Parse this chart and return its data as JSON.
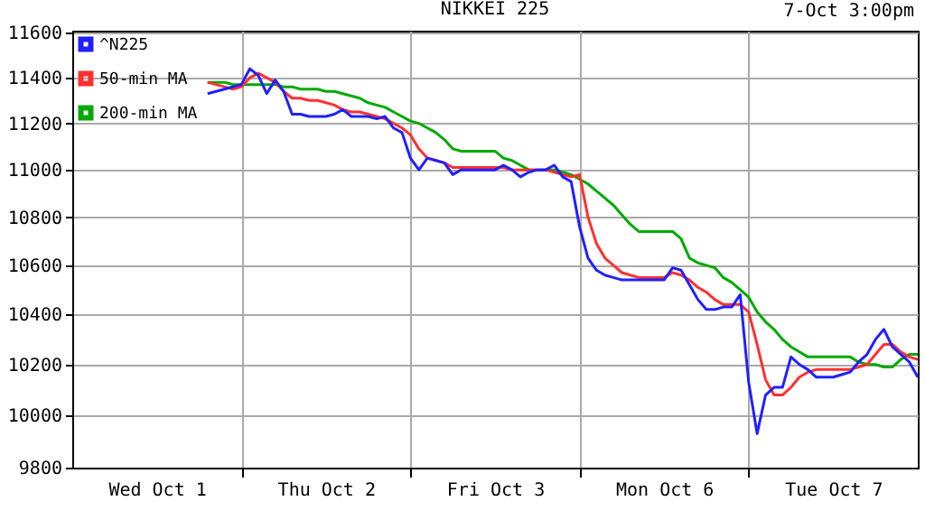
{
  "chart_data": {
    "type": "line",
    "title": "NIKKEI 225",
    "annotations": [
      "7-Oct 3:00pm"
    ],
    "log": "y",
    "grid": true,
    "legend": "top left",
    "line_style": "solid",
    "marker": "none",
    "categories": [
      null,
      null,
      null,
      null,
      null,
      null,
      null,
      null,
      null,
      null,
      "Wed Oct  1",
      null,
      null,
      null,
      null,
      null,
      null,
      null,
      null,
      null,
      null,
      null,
      null,
      null,
      null,
      null,
      null,
      null,
      null,
      null,
      "Thu Oct  2",
      null,
      null,
      null,
      null,
      null,
      null,
      null,
      null,
      null,
      null,
      null,
      null,
      null,
      null,
      null,
      null,
      null,
      null,
      null,
      "Fri Oct  3",
      null,
      null,
      null,
      null,
      null,
      null,
      null,
      null,
      null,
      null,
      null,
      null,
      null,
      null,
      null,
      null,
      null,
      null,
      null,
      "Mon Oct  6",
      null,
      null,
      null,
      null,
      null,
      null,
      null,
      null,
      null,
      null,
      null,
      null,
      null,
      null,
      null,
      null,
      null,
      null,
      null,
      "Tue Oct  7",
      null,
      null,
      null,
      null,
      null,
      null,
      null,
      null,
      null,
      null
    ],
    "ylim": [
      9800,
      11610
    ],
    "yticks": [
      9800,
      10000,
      10200,
      10400,
      10600,
      10800,
      11000,
      11200,
      11400,
      11600
    ],
    "series": [
      {
        "name": "^N225",
        "color": "#2020ff",
        "values": [
          null,
          null,
          null,
          null,
          null,
          null,
          null,
          null,
          null,
          null,
          null,
          null,
          null,
          null,
          null,
          null,
          11330,
          11340,
          11350,
          11360,
          11370,
          11440,
          11410,
          11330,
          11390,
          11340,
          11240,
          11240,
          11230,
          11230,
          11230,
          11240,
          11260,
          11230,
          11230,
          11230,
          11220,
          11230,
          11180,
          11160,
          11050,
          11000,
          11050,
          11040,
          11030,
          10980,
          11000,
          11000,
          11000,
          11000,
          11000,
          11020,
          11000,
          10970,
          10990,
          11000,
          11000,
          11020,
          10970,
          10950,
          10760,
          10630,
          10580,
          10560,
          10550,
          10540,
          10540,
          10540,
          10540,
          10540,
          10540,
          10590,
          10580,
          10520,
          10460,
          10420,
          10420,
          10430,
          10430,
          10480,
          10130,
          9930,
          10080,
          10110,
          10110,
          10230,
          10200,
          10180,
          10150,
          10150,
          10150,
          10160,
          10170,
          10210,
          10240,
          10300,
          10340,
          10270,
          10240,
          10210,
          10150
        ]
      },
      {
        "name": "50-min MA",
        "color": "#ff3030",
        "values": [
          null,
          null,
          null,
          null,
          null,
          null,
          null,
          null,
          null,
          null,
          null,
          null,
          null,
          null,
          null,
          null,
          11380,
          11370,
          11360,
          11350,
          11360,
          11400,
          11420,
          11400,
          11380,
          11340,
          11310,
          11310,
          11300,
          11300,
          11290,
          11280,
          11260,
          11250,
          11250,
          11240,
          11230,
          11220,
          11200,
          11180,
          11150,
          11090,
          11050,
          11040,
          11030,
          11010,
          11010,
          11010,
          11010,
          11010,
          11010,
          11010,
          11000,
          11000,
          11000,
          11000,
          11000,
          10990,
          10980,
          10970,
          10980,
          10800,
          10690,
          10630,
          10600,
          10570,
          10560,
          10550,
          10550,
          10550,
          10550,
          10570,
          10560,
          10540,
          10510,
          10490,
          10460,
          10440,
          10440,
          10440,
          10410,
          10280,
          10140,
          10080,
          10080,
          10110,
          10150,
          10170,
          10180,
          10180,
          10180,
          10180,
          10180,
          10190,
          10200,
          10240,
          10280,
          10280,
          10250,
          10230,
          10220
        ]
      },
      {
        "name": "200-min MA",
        "color": "#00aa00",
        "values": [
          null,
          null,
          null,
          null,
          null,
          null,
          null,
          null,
          null,
          null,
          null,
          null,
          null,
          null,
          null,
          null,
          11380,
          11380,
          11380,
          11370,
          11370,
          11370,
          11370,
          11370,
          11370,
          11360,
          11360,
          11350,
          11350,
          11350,
          11340,
          11340,
          11330,
          11320,
          11310,
          11290,
          11280,
          11270,
          11250,
          11230,
          11210,
          11200,
          11180,
          11160,
          11130,
          11090,
          11080,
          11080,
          11080,
          11080,
          11080,
          11050,
          11040,
          11020,
          11000,
          11000,
          11000,
          11000,
          10990,
          10980,
          10960,
          10940,
          10910,
          10880,
          10850,
          10810,
          10770,
          10740,
          10740,
          10740,
          10740,
          10740,
          10710,
          10630,
          10610,
          10600,
          10590,
          10550,
          10530,
          10500,
          10470,
          10410,
          10370,
          10340,
          10300,
          10270,
          10250,
          10230,
          10230,
          10230,
          10230,
          10230,
          10230,
          10210,
          10200,
          10200,
          10190,
          10190,
          10220,
          10240,
          10240
        ]
      }
    ]
  }
}
